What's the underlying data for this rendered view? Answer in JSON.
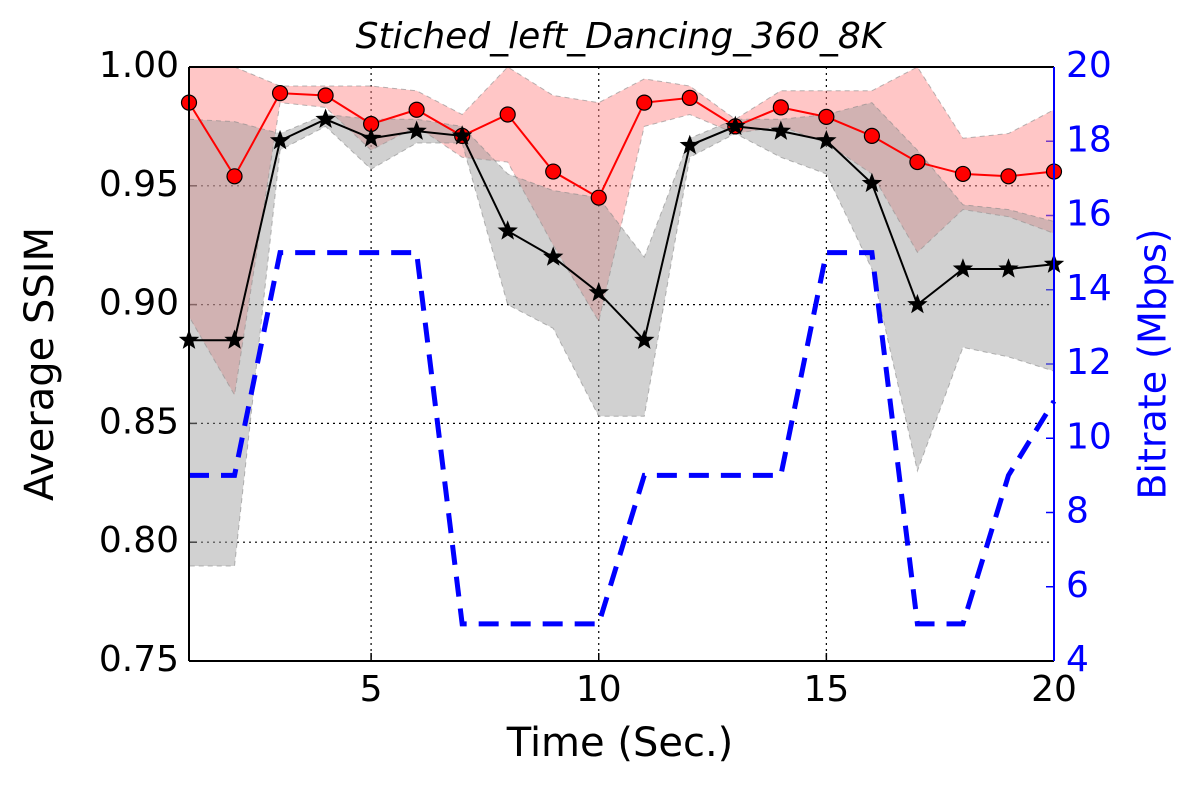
{
  "chart_data": {
    "type": "line",
    "title": "Stiched_left_Dancing_360_8K",
    "x_label": "Time (Sec.)",
    "y_label": "Average SSIM",
    "y2_label": "Bitrate (Mbps)",
    "x": [
      1,
      2,
      3,
      4,
      5,
      6,
      7,
      8,
      9,
      10,
      11,
      12,
      13,
      14,
      15,
      16,
      17,
      18,
      19,
      20
    ],
    "xlim": [
      1,
      20
    ],
    "xticks": [
      5,
      10,
      15,
      20
    ],
    "ylim": [
      0.75,
      1.0
    ],
    "yticks": [
      0.75,
      {
        "value": 0.8,
        "label": "0.80"
      },
      0.85,
      {
        "value": 0.9,
        "label": "0.90"
      },
      0.95,
      {
        "value": 1.0,
        "label": "1.00"
      }
    ],
    "y2lim": [
      4,
      20
    ],
    "y2ticks": [
      4,
      6,
      8,
      10,
      12,
      14,
      16,
      18,
      20
    ],
    "grid": true,
    "series": [
      {
        "color": "#ff0000",
        "marker": "circle",
        "band_color": "#ff8080",
        "values": [
          0.985,
          0.954,
          0.989,
          0.988,
          0.976,
          0.982,
          0.971,
          0.98,
          0.956,
          0.945,
          0.985,
          0.987,
          0.975,
          0.983,
          0.979,
          0.971,
          0.96,
          0.955,
          0.954,
          0.956
        ],
        "band_upper": [
          1.0,
          1.0,
          0.992,
          0.992,
          0.992,
          0.99,
          0.98,
          1.0,
          0.988,
          0.985,
          0.995,
          0.992,
          0.978,
          0.99,
          0.99,
          0.99,
          1.0,
          0.97,
          0.972,
          0.982
        ],
        "band_lower": [
          0.895,
          0.862,
          0.985,
          0.983,
          0.965,
          0.975,
          0.962,
          0.96,
          0.925,
          0.893,
          0.975,
          0.98,
          0.972,
          0.975,
          0.968,
          0.955,
          0.922,
          0.94,
          0.937,
          0.93
        ]
      },
      {
        "color": "#000000",
        "marker": "star",
        "band_color": "#999999",
        "values": [
          0.885,
          0.885,
          0.969,
          0.978,
          0.97,
          0.973,
          0.971,
          0.931,
          0.92,
          0.905,
          0.885,
          0.967,
          0.975,
          0.973,
          0.969,
          0.951,
          0.9,
          0.915,
          0.915,
          0.917
        ],
        "band_upper": [
          0.978,
          0.977,
          0.972,
          0.98,
          0.978,
          0.978,
          0.975,
          0.955,
          0.948,
          0.945,
          0.92,
          0.97,
          0.978,
          0.978,
          0.98,
          0.985,
          0.965,
          0.942,
          0.94,
          0.935
        ],
        "band_lower": [
          0.79,
          0.79,
          0.965,
          0.975,
          0.957,
          0.968,
          0.968,
          0.9,
          0.89,
          0.853,
          0.853,
          0.962,
          0.972,
          0.962,
          0.955,
          0.915,
          0.83,
          0.882,
          0.878,
          0.872
        ]
      },
      {
        "color": "#0000ff",
        "axis": "y2",
        "dashed": true,
        "values": [
          9,
          9,
          15,
          15,
          15,
          15,
          5,
          5,
          5,
          5,
          9,
          9,
          9,
          9,
          15,
          15,
          5,
          5,
          9,
          11
        ]
      }
    ]
  }
}
